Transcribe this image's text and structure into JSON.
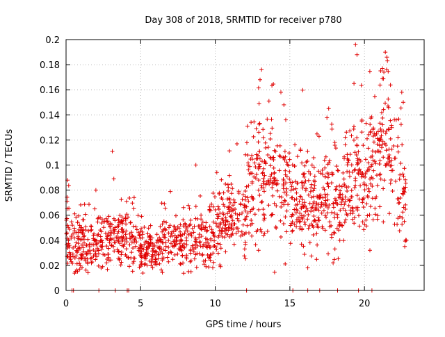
{
  "chart_data": {
    "type": "scatter",
    "title": "Day 308 of 2018, SRMTID for receiver p780",
    "xlabel": "GPS time / hours",
    "ylabel": "SRMTID / TECUs",
    "xlim": [
      0,
      24
    ],
    "ylim": [
      0,
      0.2
    ],
    "x_ticks": [
      0,
      5,
      10,
      15,
      20
    ],
    "x_tick_labels": [
      "0",
      "5",
      "10",
      "15",
      "20"
    ],
    "y_ticks": [
      0,
      0.02,
      0.04,
      0.06,
      0.08,
      0.1,
      0.12,
      0.14,
      0.16,
      0.18,
      0.2
    ],
    "y_tick_labels": [
      "0",
      "0.02",
      "0.04",
      "0.06",
      "0.08",
      "0.1",
      "0.12",
      "0.14",
      "0.16",
      "0.18",
      "0.2"
    ],
    "grid": true,
    "marker": "+",
    "color": "#e00000",
    "series": [
      {
        "name": "SRMTID",
        "density_per_hour": 70,
        "seed": 308,
        "trend": [
          {
            "x": 0.0,
            "mean": 0.045,
            "spread": 0.012
          },
          {
            "x": 0.5,
            "mean": 0.035,
            "spread": 0.01
          },
          {
            "x": 1.0,
            "mean": 0.038,
            "spread": 0.012
          },
          {
            "x": 2.0,
            "mean": 0.04,
            "spread": 0.01
          },
          {
            "x": 3.0,
            "mean": 0.042,
            "spread": 0.012
          },
          {
            "x": 4.0,
            "mean": 0.045,
            "spread": 0.012
          },
          {
            "x": 5.0,
            "mean": 0.032,
            "spread": 0.008
          },
          {
            "x": 6.0,
            "mean": 0.035,
            "spread": 0.009
          },
          {
            "x": 7.0,
            "mean": 0.038,
            "spread": 0.01
          },
          {
            "x": 8.0,
            "mean": 0.042,
            "spread": 0.011
          },
          {
            "x": 9.0,
            "mean": 0.04,
            "spread": 0.011
          },
          {
            "x": 10.0,
            "mean": 0.05,
            "spread": 0.013
          },
          {
            "x": 11.0,
            "mean": 0.06,
            "spread": 0.015
          },
          {
            "x": 12.0,
            "mean": 0.062,
            "spread": 0.016
          },
          {
            "x": 12.5,
            "mean": 0.085,
            "spread": 0.022
          },
          {
            "x": 13.5,
            "mean": 0.095,
            "spread": 0.025
          },
          {
            "x": 14.5,
            "mean": 0.085,
            "spread": 0.025
          },
          {
            "x": 15.5,
            "mean": 0.075,
            "spread": 0.02
          },
          {
            "x": 16.5,
            "mean": 0.068,
            "spread": 0.018
          },
          {
            "x": 17.5,
            "mean": 0.07,
            "spread": 0.018
          },
          {
            "x": 18.5,
            "mean": 0.072,
            "spread": 0.018
          },
          {
            "x": 19.5,
            "mean": 0.085,
            "spread": 0.022
          },
          {
            "x": 20.5,
            "mean": 0.095,
            "spread": 0.022
          },
          {
            "x": 21.3,
            "mean": 0.125,
            "spread": 0.028
          },
          {
            "x": 22.0,
            "mean": 0.1,
            "spread": 0.025
          },
          {
            "x": 22.5,
            "mean": 0.085,
            "spread": 0.022
          },
          {
            "x": 22.8,
            "mean": 0.065,
            "spread": 0.018
          }
        ],
        "outliers": [
          {
            "x": 0.1,
            "y": 0.088
          },
          {
            "x": 3.1,
            "y": 0.111
          },
          {
            "x": 3.2,
            "y": 0.089
          },
          {
            "x": 8.7,
            "y": 0.1
          },
          {
            "x": 13.1,
            "y": 0.176
          },
          {
            "x": 13.0,
            "y": 0.168
          },
          {
            "x": 14.4,
            "y": 0.158
          },
          {
            "x": 14.6,
            "y": 0.148
          },
          {
            "x": 12.4,
            "y": 0.134
          },
          {
            "x": 17.6,
            "y": 0.145
          },
          {
            "x": 19.4,
            "y": 0.196
          },
          {
            "x": 19.5,
            "y": 0.188
          },
          {
            "x": 19.3,
            "y": 0.165
          },
          {
            "x": 21.4,
            "y": 0.19
          },
          {
            "x": 21.5,
            "y": 0.186
          },
          {
            "x": 21.3,
            "y": 0.174
          },
          {
            "x": 22.5,
            "y": 0.158
          },
          {
            "x": 22.6,
            "y": 0.15
          },
          {
            "x": 12.9,
            "y": 0.032
          },
          {
            "x": 16.2,
            "y": 0.018
          },
          {
            "x": 17.9,
            "y": 0.022
          },
          {
            "x": 22.7,
            "y": 0.035
          },
          {
            "x": 22.8,
            "y": 0.04
          }
        ],
        "zero_values": [
          {
            "x": 0.4,
            "y": 0
          },
          {
            "x": 0.5,
            "y": 0
          },
          {
            "x": 2.2,
            "y": 0
          },
          {
            "x": 3.3,
            "y": 0
          },
          {
            "x": 4.1,
            "y": 0
          },
          {
            "x": 4.2,
            "y": 0
          },
          {
            "x": 12.1,
            "y": 0
          },
          {
            "x": 15.2,
            "y": 0
          },
          {
            "x": 16.2,
            "y": 0
          },
          {
            "x": 17.0,
            "y": 0
          },
          {
            "x": 18.2,
            "y": 0
          },
          {
            "x": 19.6,
            "y": 0
          },
          {
            "x": 20.5,
            "y": 0
          }
        ]
      }
    ]
  }
}
